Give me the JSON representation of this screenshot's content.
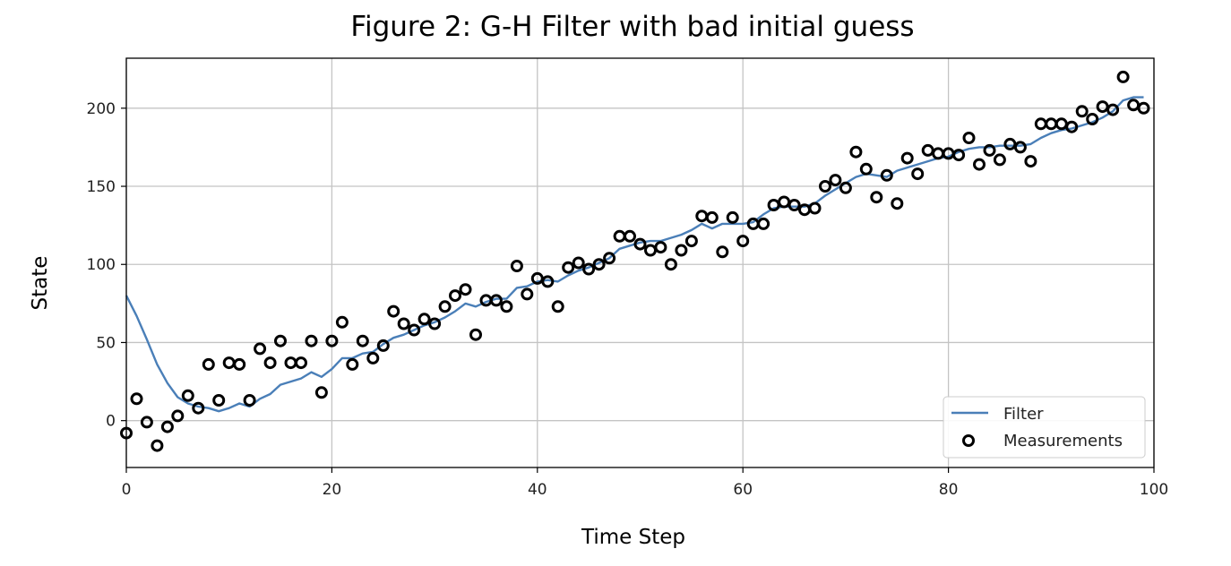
{
  "chart_data": {
    "type": "scatter",
    "title": "Figure 2: G-H Filter with bad initial guess",
    "xlabel": "Time Step",
    "ylabel": "State",
    "xlim": [
      0,
      100
    ],
    "ylim": [
      -30,
      232
    ],
    "xticks": [
      0,
      20,
      40,
      60,
      80,
      100
    ],
    "yticks": [
      0,
      50,
      100,
      150,
      200
    ],
    "grid": true,
    "legend_position": "lower-right",
    "colors": {
      "filter": "#4a7fb8",
      "measurements": "#000000"
    },
    "series": [
      {
        "name": "Filter",
        "kind": "line",
        "x": [
          0,
          1,
          2,
          3,
          4,
          5,
          6,
          7,
          8,
          9,
          10,
          11,
          12,
          13,
          14,
          15,
          16,
          17,
          18,
          19,
          20,
          21,
          22,
          23,
          24,
          25,
          26,
          27,
          28,
          29,
          30,
          31,
          32,
          33,
          34,
          35,
          36,
          37,
          38,
          39,
          40,
          41,
          42,
          43,
          44,
          45,
          46,
          47,
          48,
          49,
          50,
          51,
          52,
          53,
          54,
          55,
          56,
          57,
          58,
          59,
          60,
          61,
          62,
          63,
          64,
          65,
          66,
          67,
          68,
          69,
          70,
          71,
          72,
          73,
          74,
          75,
          76,
          77,
          78,
          79,
          80,
          81,
          82,
          83,
          84,
          85,
          86,
          87,
          88,
          89,
          90,
          91,
          92,
          93,
          94,
          95,
          96,
          97,
          98,
          99
        ],
        "y": [
          80,
          67,
          52,
          36,
          24,
          15,
          11,
          9,
          8,
          6,
          8,
          11,
          9,
          14,
          17,
          23,
          25,
          27,
          31,
          28,
          33,
          40,
          40,
          43,
          44,
          49,
          53,
          55,
          58,
          61,
          63,
          66,
          70,
          75,
          73,
          76,
          78,
          78,
          85,
          86,
          89,
          90,
          89,
          93,
          96,
          98,
          101,
          104,
          110,
          112,
          114,
          115,
          115,
          117,
          119,
          122,
          126,
          123,
          126,
          126,
          126,
          127,
          132,
          136,
          137,
          137,
          137,
          139,
          144,
          148,
          152,
          156,
          158,
          157,
          156,
          160,
          162,
          164,
          166,
          168,
          169,
          172,
          174,
          175,
          175,
          176,
          176,
          176,
          177,
          181,
          184,
          186,
          187,
          189,
          191,
          194,
          198,
          205,
          207,
          207
        ]
      },
      {
        "name": "Measurements",
        "kind": "scatter",
        "x": [
          0,
          1,
          2,
          3,
          4,
          5,
          6,
          7,
          8,
          9,
          10,
          11,
          12,
          13,
          14,
          15,
          16,
          17,
          18,
          19,
          20,
          21,
          22,
          23,
          24,
          25,
          26,
          27,
          28,
          29,
          30,
          31,
          32,
          33,
          34,
          35,
          36,
          37,
          38,
          39,
          40,
          41,
          42,
          43,
          44,
          45,
          46,
          47,
          48,
          49,
          50,
          51,
          52,
          53,
          54,
          55,
          56,
          57,
          58,
          59,
          60,
          61,
          62,
          63,
          64,
          65,
          66,
          67,
          68,
          69,
          70,
          71,
          72,
          73,
          74,
          75,
          76,
          77,
          78,
          79,
          80,
          81,
          82,
          83,
          84,
          85,
          86,
          87,
          88,
          89,
          90,
          91,
          92,
          93,
          94,
          95,
          96,
          97,
          98,
          99
        ],
        "y": [
          -8,
          14,
          -1,
          -16,
          -4,
          3,
          16,
          8,
          36,
          13,
          37,
          36,
          13,
          46,
          37,
          51,
          37,
          37,
          51,
          18,
          51,
          63,
          36,
          51,
          40,
          48,
          70,
          62,
          58,
          65,
          62,
          73,
          80,
          84,
          55,
          77,
          77,
          73,
          99,
          81,
          91,
          89,
          73,
          98,
          101,
          97,
          100,
          104,
          118,
          118,
          113,
          109,
          111,
          100,
          109,
          115,
          131,
          130,
          108,
          130,
          115,
          126,
          126,
          138,
          140,
          138,
          135,
          136,
          150,
          154,
          149,
          172,
          161,
          143,
          157,
          139,
          168,
          158,
          173,
          171,
          171,
          170,
          181,
          164,
          173,
          167,
          177,
          175,
          166,
          190,
          190,
          190,
          188,
          198,
          193,
          201,
          199,
          220,
          202,
          200
        ]
      }
    ]
  }
}
